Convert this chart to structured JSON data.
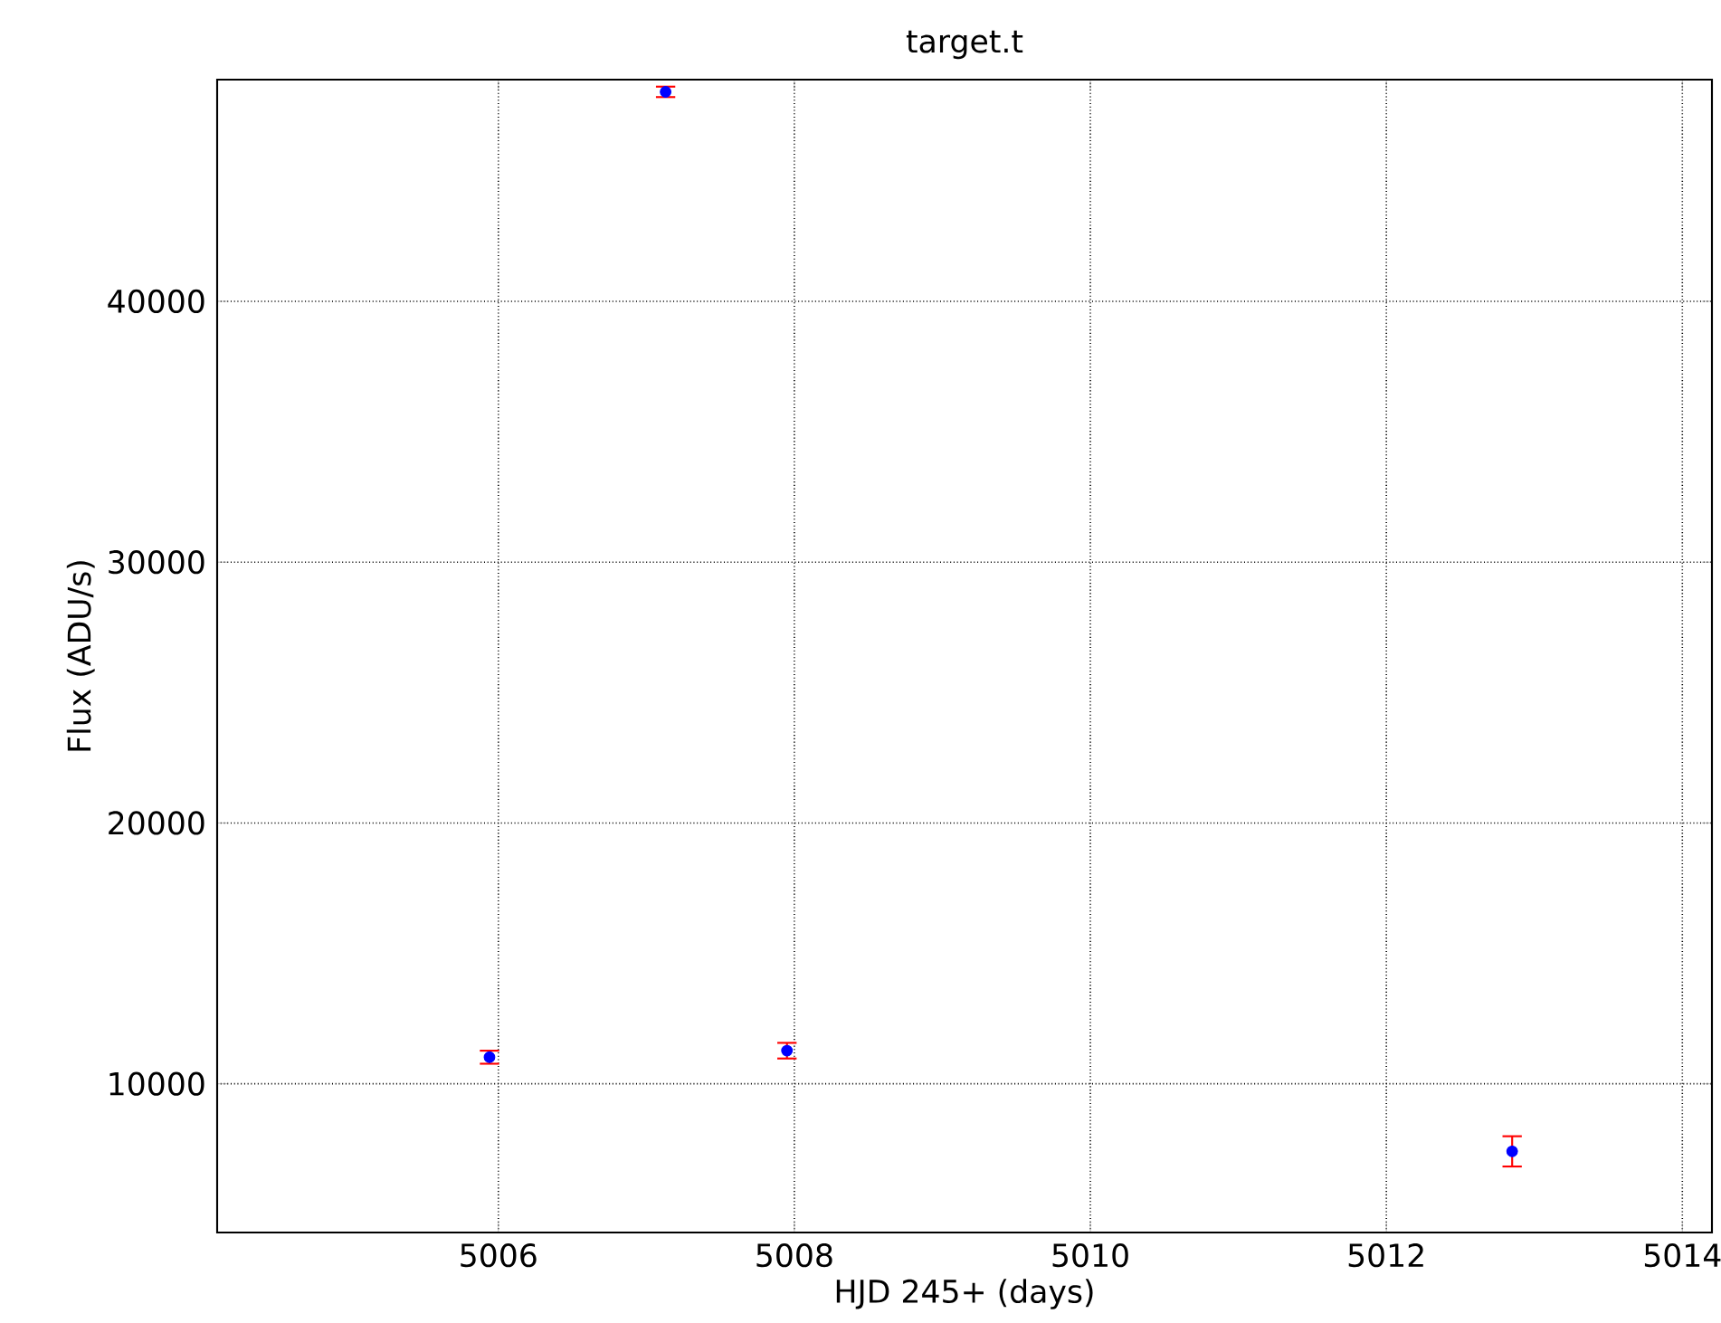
{
  "chart_data": {
    "type": "scatter",
    "title": "target.t",
    "xlabel": "HJD 245+ (days)",
    "ylabel": "Flux (ADU/s)",
    "x": [
      5005.94,
      5007.13,
      5007.95,
      5012.85
    ],
    "series": [
      {
        "color": "#0000ff",
        "values": [
          11020,
          48030,
          11270,
          7410
        ],
        "errors": [
          250,
          200,
          300,
          580
        ]
      }
    ],
    "xlim": [
      5004.1,
      5014.2
    ],
    "ylim": [
      4300,
      48500
    ],
    "xticks": [
      5006,
      5008,
      5010,
      5012,
      5014
    ],
    "yticks": [
      10000,
      20000,
      30000,
      40000
    ],
    "grid": true,
    "marker": "circle"
  }
}
